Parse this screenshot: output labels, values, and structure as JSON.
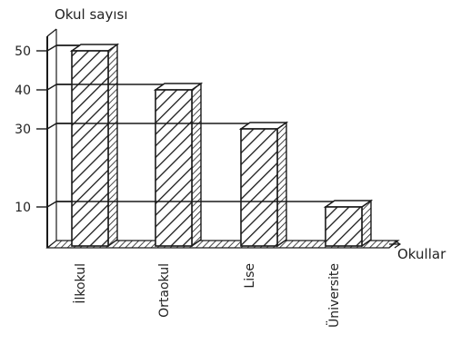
{
  "chart_data": {
    "type": "bar",
    "title": "",
    "ylabel": "Okul sayısı",
    "xlabel": "Okullar",
    "categories": [
      "İlkokul",
      "Ortaokul",
      "Lise",
      "Üniversite"
    ],
    "values": [
      50,
      40,
      30,
      10
    ],
    "y_ticks": [
      10,
      30,
      40,
      50
    ],
    "ylim": [
      0,
      55
    ],
    "grid": true,
    "legend": "none",
    "style": "3d-hatched",
    "colors": {
      "ink": "#1a1a1a",
      "bar_fill": "#ffffff",
      "background": "#ffffff"
    }
  }
}
